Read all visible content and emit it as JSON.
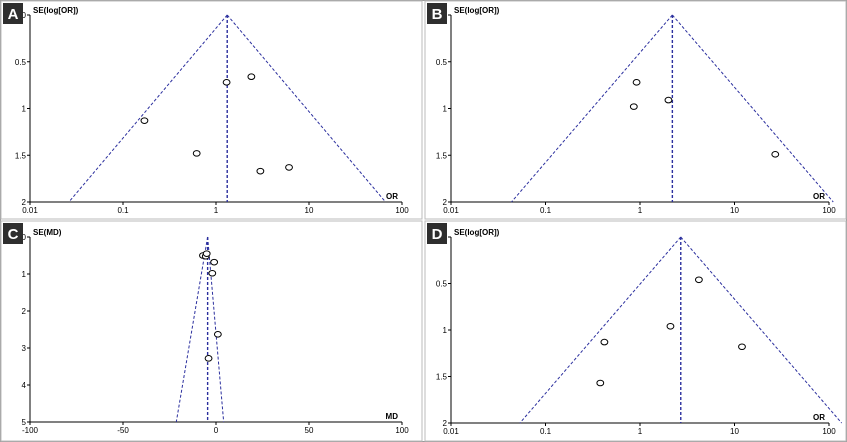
{
  "chart_data": [
    {
      "id": "A",
      "type": "scatter",
      "panel_label": "A",
      "ylabel": "SE(log[OR])",
      "xlabel": "OR",
      "xscale": "log",
      "xlim": [
        0.01,
        100
      ],
      "ylim": [
        0,
        2
      ],
      "y_inverted": true,
      "x_ticks": [
        "0.01",
        "0.1",
        "1",
        "10",
        "100"
      ],
      "y_ticks": [
        "0",
        "0.5",
        "1",
        "1.5",
        "2"
      ],
      "pooled": 1.32,
      "points": [
        {
          "x": 0.17,
          "y": 1.13
        },
        {
          "x": 0.62,
          "y": 1.48
        },
        {
          "x": 1.3,
          "y": 0.72
        },
        {
          "x": 2.4,
          "y": 0.66
        },
        {
          "x": 3.0,
          "y": 1.67
        },
        {
          "x": 6.1,
          "y": 1.63
        }
      ]
    },
    {
      "id": "B",
      "type": "scatter",
      "panel_label": "B",
      "ylabel": "SE(log[OR])",
      "xlabel": "OR",
      "xscale": "log",
      "xlim": [
        0.01,
        100
      ],
      "ylim": [
        0,
        2
      ],
      "y_inverted": true,
      "x_ticks": [
        "0.01",
        "0.1",
        "1",
        "10",
        "100"
      ],
      "y_ticks": [
        "0",
        "0.5",
        "1",
        "1.5",
        "2"
      ],
      "pooled": 2.2,
      "points": [
        {
          "x": 0.92,
          "y": 0.72
        },
        {
          "x": 0.86,
          "y": 0.98
        },
        {
          "x": 2.0,
          "y": 0.91
        },
        {
          "x": 27.0,
          "y": 1.49
        }
      ]
    },
    {
      "id": "C",
      "type": "scatter",
      "panel_label": "C",
      "ylabel": "SE(MD)",
      "xlabel": "MD",
      "xscale": "linear",
      "xlim": [
        -100,
        100
      ],
      "ylim": [
        0,
        5
      ],
      "y_inverted": true,
      "x_ticks": [
        "-100",
        "-50",
        "0",
        "50",
        "100"
      ],
      "y_ticks": [
        "0",
        "1",
        "2",
        "3",
        "4",
        "5"
      ],
      "pooled": -4.5,
      "points": [
        {
          "x": -7.0,
          "y": 0.5
        },
        {
          "x": -5.5,
          "y": 0.52
        },
        {
          "x": -5.0,
          "y": 0.45
        },
        {
          "x": -1.0,
          "y": 0.68
        },
        {
          "x": -2.0,
          "y": 0.98
        },
        {
          "x": 1.0,
          "y": 2.63
        },
        {
          "x": -4.0,
          "y": 3.28
        }
      ]
    },
    {
      "id": "D",
      "type": "scatter",
      "panel_label": "D",
      "ylabel": "SE(log[OR])",
      "xlabel": "OR",
      "xscale": "log",
      "xlim": [
        0.01,
        100
      ],
      "ylim": [
        0,
        2
      ],
      "y_inverted": true,
      "x_ticks": [
        "0.01",
        "0.1",
        "1",
        "10",
        "100"
      ],
      "y_ticks": [
        "0",
        "0.5",
        "1",
        "1.5",
        "2"
      ],
      "pooled": 2.7,
      "points": [
        {
          "x": 4.2,
          "y": 0.46
        },
        {
          "x": 2.1,
          "y": 0.96
        },
        {
          "x": 0.42,
          "y": 1.13
        },
        {
          "x": 12.0,
          "y": 1.18
        },
        {
          "x": 0.38,
          "y": 1.57
        }
      ]
    }
  ],
  "colors": {
    "badge": "#2e2e2e",
    "funnel": "#2b2f9e",
    "axis": "#000000",
    "marker": "#000000"
  }
}
